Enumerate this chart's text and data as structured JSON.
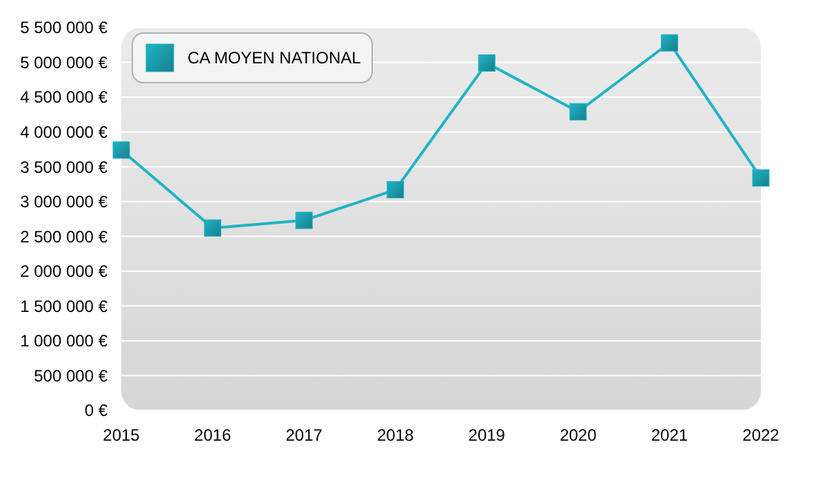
{
  "chart_data": {
    "type": "line",
    "x": [
      2015,
      2016,
      2017,
      2018,
      2019,
      2020,
      2021,
      2022
    ],
    "series": [
      {
        "name": "CA MOYEN NATIONAL",
        "color": "#1fb3c4",
        "values": [
          3740000,
          2620000,
          2730000,
          3170000,
          4990000,
          4290000,
          5280000,
          3340000
        ]
      }
    ],
    "xlim": [
      2015,
      2022
    ],
    "xticks": [
      2015,
      2016,
      2017,
      2018,
      2019,
      2020,
      2021,
      2022
    ],
    "ylim": [
      0,
      5500000
    ],
    "yticks": [
      {
        "value": 0,
        "label": "0 €"
      },
      {
        "value": 500000,
        "label": "500 000 €"
      },
      {
        "value": 1000000,
        "label": "1 000 000 €"
      },
      {
        "value": 1500000,
        "label": "1 500 000 €"
      },
      {
        "value": 2000000,
        "label": "2 000 000 €"
      },
      {
        "value": 2500000,
        "label": "2 500 000 €"
      },
      {
        "value": 3000000,
        "label": "3 000 000 €"
      },
      {
        "value": 3500000,
        "label": "3 500 000 €"
      },
      {
        "value": 4000000,
        "label": "4 000 000 €"
      },
      {
        "value": 4500000,
        "label": "4 500 000 €"
      },
      {
        "value": 5000000,
        "label": "5 000 000 €"
      },
      {
        "value": 5500000,
        "label": "5 500 000 €"
      }
    ],
    "grid": "y",
    "legend": "top left",
    "marker": "square",
    "line_style": "solid"
  }
}
